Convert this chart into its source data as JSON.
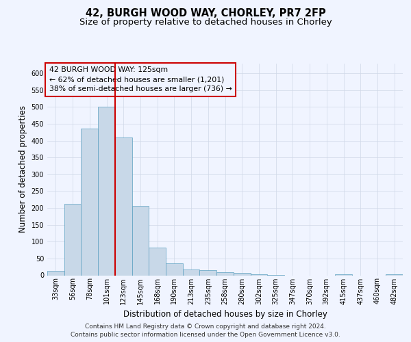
{
  "title_line1": "42, BURGH WOOD WAY, CHORLEY, PR7 2FP",
  "title_line2": "Size of property relative to detached houses in Chorley",
  "xlabel": "Distribution of detached houses by size in Chorley",
  "ylabel": "Number of detached properties",
  "footer_line1": "Contains HM Land Registry data © Crown copyright and database right 2024.",
  "footer_line2": "Contains public sector information licensed under the Open Government Licence v3.0.",
  "annotation_line1": "42 BURGH WOOD WAY: 125sqm",
  "annotation_line2": "← 62% of detached houses are smaller (1,201)",
  "annotation_line3": "38% of semi-detached houses are larger (736) →",
  "bar_labels": [
    "33sqm",
    "56sqm",
    "78sqm",
    "101sqm",
    "123sqm",
    "145sqm",
    "168sqm",
    "190sqm",
    "213sqm",
    "235sqm",
    "258sqm",
    "280sqm",
    "302sqm",
    "325sqm",
    "347sqm",
    "370sqm",
    "392sqm",
    "415sqm",
    "437sqm",
    "460sqm",
    "482sqm"
  ],
  "bar_values": [
    13,
    212,
    435,
    500,
    410,
    207,
    83,
    35,
    17,
    15,
    10,
    7,
    4,
    2,
    0,
    0,
    0,
    4,
    0,
    0,
    4
  ],
  "bar_color": "#c8d8e8",
  "bar_edge_color": "#5a9fc0",
  "vline_x_idx": 4,
  "vline_color": "#cc0000",
  "ylim": [
    0,
    630
  ],
  "yticks": [
    0,
    50,
    100,
    150,
    200,
    250,
    300,
    350,
    400,
    450,
    500,
    550,
    600
  ],
  "bg_color": "#f0f4ff",
  "grid_color": "#d0d8e8",
  "annotation_box_color": "#cc0000",
  "title_fontsize": 10.5,
  "subtitle_fontsize": 9.5,
  "axis_label_fontsize": 8.5,
  "tick_fontsize": 7,
  "footer_fontsize": 6.5,
  "annotation_fontsize": 7.8
}
